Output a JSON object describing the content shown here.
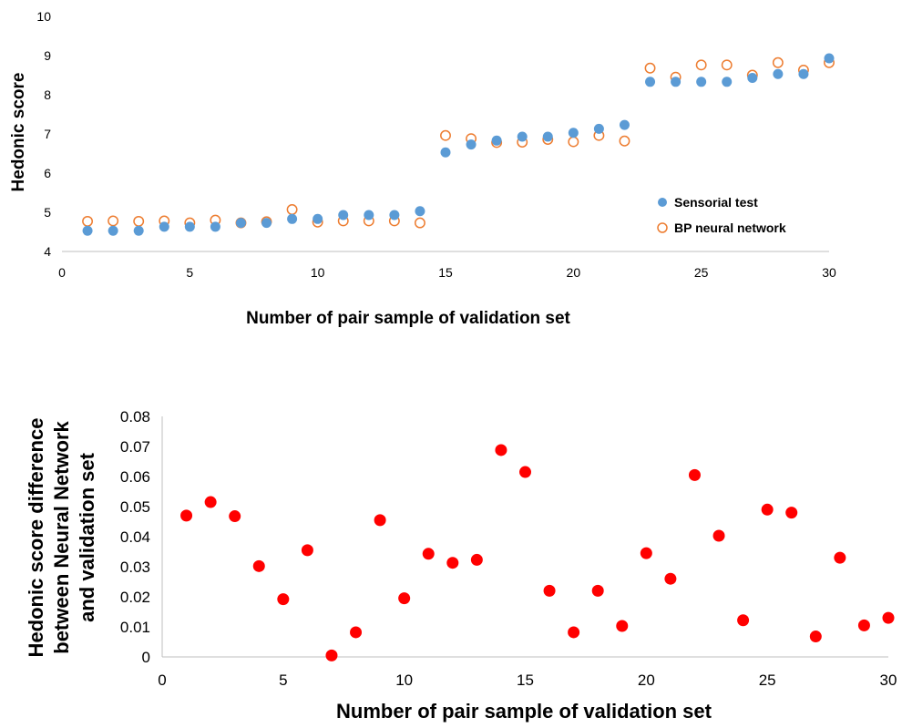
{
  "chart_data": [
    {
      "type": "scatter",
      "title": "",
      "xlabel": "Number of pair sample of validation set",
      "ylabel": "Hedonic score",
      "xlim": [
        0,
        30
      ],
      "ylim": [
        4,
        10
      ],
      "x_ticks": [
        "0",
        "5",
        "10",
        "15",
        "20",
        "25",
        "30"
      ],
      "y_ticks": [
        "4",
        "5",
        "6",
        "7",
        "8",
        "9",
        "10"
      ],
      "grid": false,
      "legend_position": "right",
      "series": [
        {
          "name": "Sensorial test",
          "marker": "filled-circle",
          "color": "#5b9bd5",
          "points": [
            [
              1,
              4.53
            ],
            [
              2,
              4.53
            ],
            [
              3,
              4.53
            ],
            [
              4,
              4.63
            ],
            [
              5,
              4.63
            ],
            [
              6,
              4.63
            ],
            [
              7,
              4.73
            ],
            [
              8,
              4.73
            ],
            [
              9,
              4.83
            ],
            [
              10,
              4.83
            ],
            [
              11,
              4.93
            ],
            [
              12,
              4.93
            ],
            [
              13,
              4.93
            ],
            [
              14,
              5.03
            ],
            [
              15,
              6.53
            ],
            [
              16,
              6.73
            ],
            [
              17,
              6.83
            ],
            [
              18,
              6.93
            ],
            [
              19,
              6.93
            ],
            [
              20,
              7.03
            ],
            [
              21,
              7.13
            ],
            [
              22,
              7.23
            ],
            [
              23,
              8.33
            ],
            [
              24,
              8.33
            ],
            [
              25,
              8.33
            ],
            [
              26,
              8.33
            ],
            [
              27,
              8.43
            ],
            [
              28,
              8.53
            ],
            [
              29,
              8.53
            ],
            [
              30,
              8.93
            ]
          ]
        },
        {
          "name": "BP neural network",
          "marker": "hollow-circle",
          "color": "#ed7d31",
          "points": [
            [
              1,
              4.77
            ],
            [
              2,
              4.78
            ],
            [
              3,
              4.77
            ],
            [
              4,
              4.78
            ],
            [
              5,
              4.73
            ],
            [
              6,
              4.8
            ],
            [
              7,
              4.73
            ],
            [
              8,
              4.76
            ],
            [
              9,
              5.07
            ],
            [
              10,
              4.75
            ],
            [
              11,
              4.78
            ],
            [
              12,
              4.78
            ],
            [
              13,
              4.78
            ],
            [
              14,
              4.73
            ],
            [
              15,
              6.96
            ],
            [
              16,
              6.88
            ],
            [
              17,
              6.78
            ],
            [
              18,
              6.79
            ],
            [
              19,
              6.86
            ],
            [
              20,
              6.8
            ],
            [
              21,
              6.96
            ],
            [
              22,
              6.82
            ],
            [
              23,
              8.68
            ],
            [
              24,
              8.45
            ],
            [
              25,
              8.76
            ],
            [
              26,
              8.76
            ],
            [
              27,
              8.5
            ],
            [
              28,
              8.82
            ],
            [
              29,
              8.63
            ],
            [
              30,
              8.82
            ]
          ]
        }
      ]
    },
    {
      "type": "scatter",
      "title": "",
      "xlabel": "Number of pair sample of validation set",
      "ylabel_lines": [
        "Hedonic score difference",
        "between Neural Network",
        "and validation set"
      ],
      "xlim": [
        0,
        30
      ],
      "ylim": [
        0,
        0.08
      ],
      "x_ticks": [
        "0",
        "5",
        "10",
        "15",
        "20",
        "25",
        "30"
      ],
      "y_ticks": [
        "0",
        "0.01",
        "0.02",
        "0.03",
        "0.04",
        "0.05",
        "0.06",
        "0.07",
        "0.08"
      ],
      "grid": false,
      "series": [
        {
          "marker": "filled-circle",
          "color": "#ff0000",
          "points": [
            [
              1,
              0.047
            ],
            [
              2,
              0.0515
            ],
            [
              3,
              0.0468
            ],
            [
              4,
              0.0302
            ],
            [
              5,
              0.0192
            ],
            [
              6,
              0.0355
            ],
            [
              7,
              0.0005
            ],
            [
              8,
              0.0082
            ],
            [
              9,
              0.0455
            ],
            [
              10,
              0.0195
            ],
            [
              11,
              0.0343
            ],
            [
              12,
              0.0313
            ],
            [
              13,
              0.0323
            ],
            [
              14,
              0.0688
            ],
            [
              15,
              0.0615
            ],
            [
              16,
              0.022
            ],
            [
              17,
              0.0082
            ],
            [
              18,
              0.022
            ],
            [
              19,
              0.0103
            ],
            [
              20,
              0.0345
            ],
            [
              21,
              0.026
            ],
            [
              22,
              0.0605
            ],
            [
              23,
              0.0403
            ],
            [
              24,
              0.0122
            ],
            [
              25,
              0.049
            ],
            [
              26,
              0.048
            ],
            [
              27,
              0.0068
            ],
            [
              28,
              0.033
            ],
            [
              29,
              0.0105
            ],
            [
              30,
              0.013
            ]
          ]
        }
      ]
    }
  ]
}
